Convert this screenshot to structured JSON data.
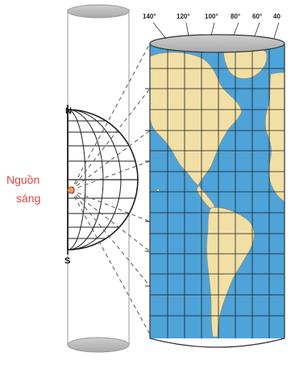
{
  "light_source_label": [
    "Nguồn",
    "sáng"
  ],
  "poles": {
    "north": "N",
    "south": "S"
  },
  "longitude_labels": [
    "140°",
    "120°",
    "100°",
    "80°",
    "60°",
    "40"
  ],
  "colors": {
    "ocean": "#4ea3d8",
    "land": "#f1dfa6",
    "cylinder_edge": "#b9b9b9",
    "light_source": "#d9493c",
    "grid": "#1d1d1d"
  }
}
